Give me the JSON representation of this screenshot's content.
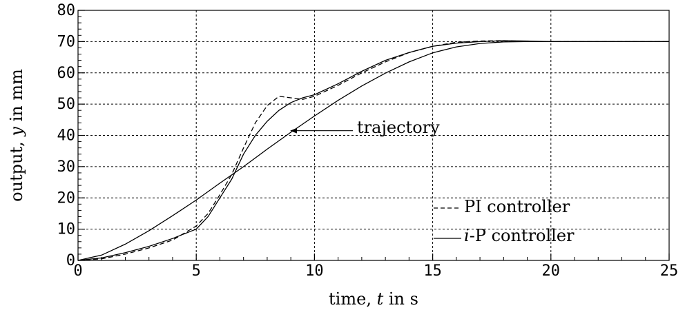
{
  "chart_data": {
    "type": "line",
    "xlabel_parts": [
      "time, ",
      "t",
      " in s"
    ],
    "ylabel_parts": [
      "output, ",
      "y",
      " in mm"
    ],
    "xlim": [
      0,
      25
    ],
    "ylim": [
      0,
      80
    ],
    "xticks": [
      0,
      5,
      10,
      15,
      20,
      25
    ],
    "yticks": [
      0,
      10,
      20,
      30,
      40,
      50,
      60,
      70,
      80
    ],
    "grid": true,
    "legend_position": "bottom-right",
    "series": [
      {
        "name": "trajectory",
        "style": "solid",
        "x": [
          0,
          1,
          2,
          3,
          4,
          5,
          6,
          7,
          8,
          9,
          10,
          11,
          12,
          13,
          14,
          15,
          16,
          17,
          18,
          19,
          20,
          21,
          22,
          23,
          24,
          25
        ],
        "y": [
          0,
          1.7,
          5.2,
          9.5,
          14.3,
          19.3,
          24.7,
          30.0,
          35.6,
          41.0,
          46.2,
          51.2,
          55.8,
          59.9,
          63.5,
          66.4,
          68.3,
          69.4,
          69.9,
          70,
          70,
          70,
          70,
          70,
          70,
          70
        ]
      },
      {
        "name": "PI controller",
        "style": "dashed",
        "x": [
          0,
          1,
          2,
          3,
          4,
          5,
          5.5,
          6,
          6.5,
          7,
          7.5,
          8,
          8.5,
          9,
          9.5,
          10,
          11,
          12,
          13,
          14,
          15,
          16,
          17,
          18,
          19,
          20,
          21,
          22,
          23,
          24,
          25
        ],
        "y": [
          0,
          0.5,
          2,
          4,
          6.5,
          11,
          15,
          21,
          27.5,
          36,
          44,
          49.5,
          52.5,
          52,
          51.5,
          52.5,
          56,
          60,
          63.5,
          66.5,
          68.5,
          69.8,
          70.2,
          70.3,
          70,
          70,
          70,
          70,
          70,
          70,
          70
        ]
      },
      {
        "name": "i-P controller",
        "style": "solid",
        "x": [
          0,
          1,
          2,
          3,
          4,
          5,
          5.5,
          6,
          6.5,
          7,
          7.5,
          8,
          8.5,
          9,
          9.5,
          10,
          11,
          12,
          13,
          14,
          15,
          16,
          17,
          18,
          19,
          20,
          21,
          22,
          23,
          24,
          25
        ],
        "y": [
          0,
          0.8,
          2.5,
          4.5,
          7,
          10,
          14,
          20,
          26,
          34,
          40,
          44.5,
          48,
          50.5,
          52,
          53,
          56.5,
          60.5,
          64,
          66.5,
          68.5,
          69.5,
          70,
          70.3,
          70.2,
          70,
          70,
          70,
          70,
          70,
          70
        ]
      }
    ],
    "annotation": {
      "text": "trajectory",
      "arrow_to": [
        9,
        41.5
      ],
      "text_at": [
        11.8,
        42.5
      ]
    },
    "legend": [
      {
        "label": "PI controller",
        "style": "dashed"
      },
      {
        "label_italic": "i",
        "label": "-P controller",
        "style": "solid"
      }
    ]
  }
}
